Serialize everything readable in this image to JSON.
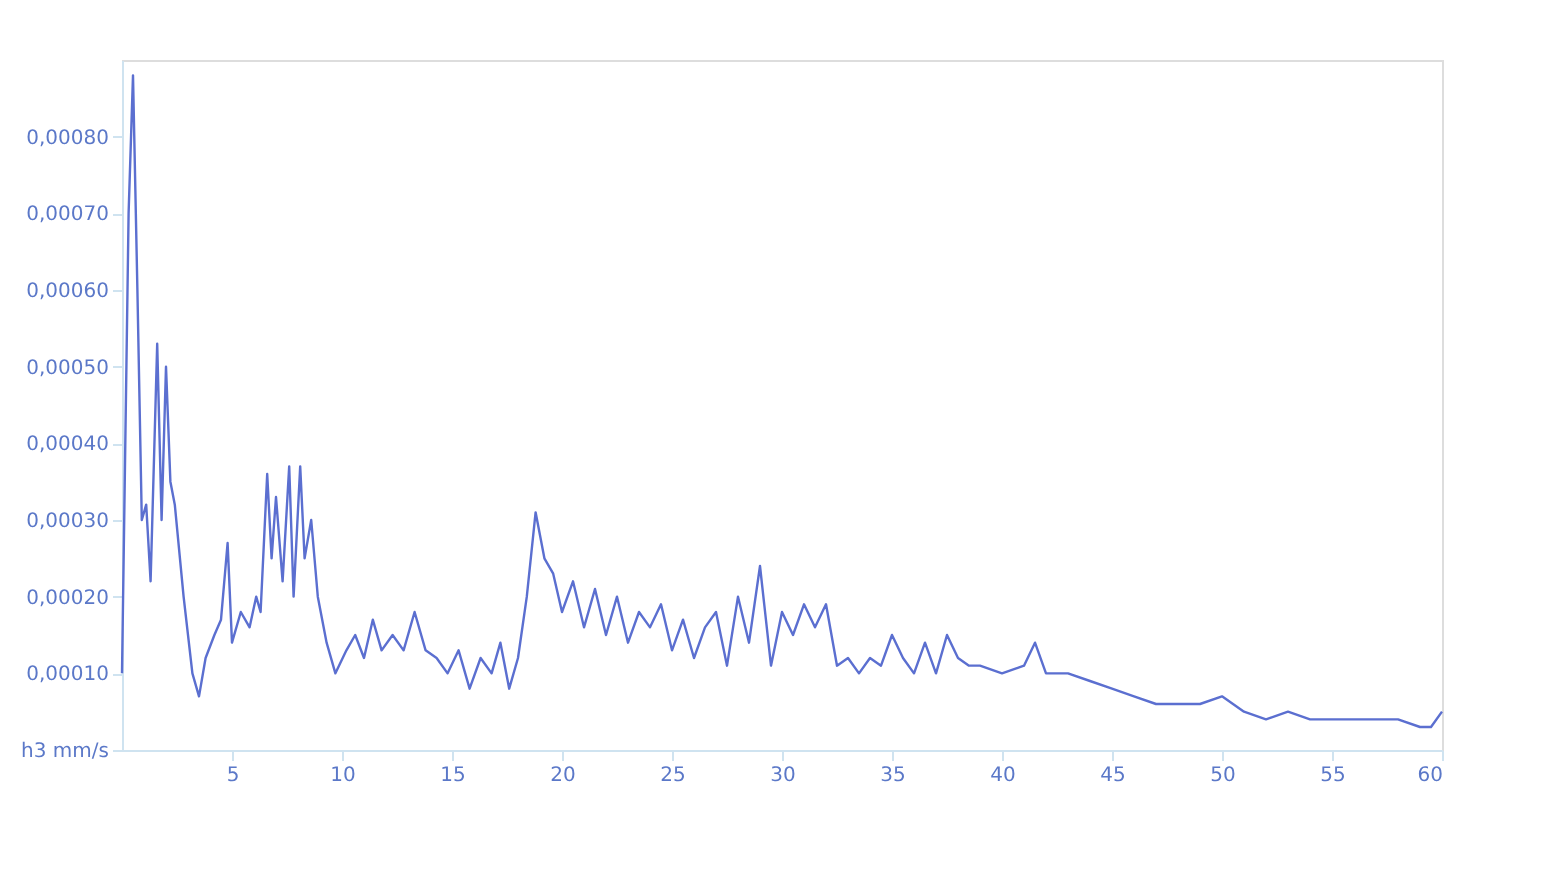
{
  "chart_data": {
    "type": "line",
    "grid": false,
    "marker": "none",
    "line_style": "solid",
    "x": [
      0,
      0.3,
      0.5,
      0.7,
      0.9,
      1.1,
      1.3,
      1.6,
      1.8,
      2.0,
      2.2,
      2.4,
      2.8,
      3.2,
      3.5,
      3.8,
      4.2,
      4.5,
      4.8,
      5.0,
      5.4,
      5.8,
      6.1,
      6.3,
      6.6,
      6.8,
      7.0,
      7.3,
      7.6,
      7.8,
      8.1,
      8.3,
      8.6,
      8.9,
      9.3,
      9.7,
      10.2,
      10.6,
      11.0,
      11.4,
      11.8,
      12.3,
      12.8,
      13.3,
      13.8,
      14.3,
      14.8,
      15.3,
      15.8,
      16.3,
      16.8,
      17.2,
      17.6,
      18.0,
      18.4,
      18.8,
      19.2,
      19.6,
      20.0,
      20.5,
      21.0,
      21.5,
      22.0,
      22.5,
      23.0,
      23.5,
      24.0,
      24.5,
      25.0,
      25.5,
      26.0,
      26.5,
      27.0,
      27.5,
      28.0,
      28.5,
      29.0,
      29.5,
      30.0,
      30.5,
      31.0,
      31.5,
      32.0,
      32.5,
      33.0,
      33.5,
      34.0,
      34.5,
      35.0,
      35.5,
      36.0,
      36.5,
      37.0,
      37.5,
      38.0,
      38.5,
      39.0,
      40.0,
      41.0,
      41.5,
      42.0,
      43.0,
      44.0,
      45.0,
      46.0,
      47.0,
      48.0,
      49.0,
      50.0,
      51.0,
      52.0,
      53.0,
      54.0,
      55.0,
      56.0,
      57.0,
      58.0,
      59.0,
      59.5,
      60.0
    ],
    "series": [
      {
        "color": "#5b6fd0",
        "values": [
          0.0001,
          0.0007,
          0.00088,
          0.0006,
          0.0003,
          0.00032,
          0.00022,
          0.00053,
          0.0003,
          0.0005,
          0.00035,
          0.00032,
          0.0002,
          0.0001,
          7e-05,
          0.00012,
          0.00015,
          0.00017,
          0.00027,
          0.00014,
          0.00018,
          0.00016,
          0.0002,
          0.00018,
          0.00036,
          0.00025,
          0.00033,
          0.00022,
          0.00037,
          0.0002,
          0.00037,
          0.00025,
          0.0003,
          0.0002,
          0.00014,
          0.0001,
          0.00013,
          0.00015,
          0.00012,
          0.00017,
          0.00013,
          0.00015,
          0.00013,
          0.00018,
          0.00013,
          0.00012,
          0.0001,
          0.00013,
          8e-05,
          0.00012,
          0.0001,
          0.00014,
          8e-05,
          0.00012,
          0.0002,
          0.00031,
          0.00025,
          0.00023,
          0.00018,
          0.00022,
          0.00016,
          0.00021,
          0.00015,
          0.0002,
          0.00014,
          0.00018,
          0.00016,
          0.00019,
          0.00013,
          0.00017,
          0.00012,
          0.00016,
          0.00018,
          0.00011,
          0.0002,
          0.00014,
          0.00024,
          0.00011,
          0.00018,
          0.00015,
          0.00019,
          0.00016,
          0.00019,
          0.00011,
          0.00012,
          0.0001,
          0.00012,
          0.00011,
          0.00015,
          0.00012,
          0.0001,
          0.00014,
          0.0001,
          0.00015,
          0.00012,
          0.00011,
          0.00011,
          0.0001,
          0.00011,
          0.00014,
          0.0001,
          0.0001,
          9e-05,
          8e-05,
          7e-05,
          6e-05,
          6e-05,
          6e-05,
          7e-05,
          5e-05,
          4e-05,
          5e-05,
          4e-05,
          4e-05,
          4e-05,
          4e-05,
          4e-05,
          3e-05,
          3e-05,
          5e-05
        ]
      }
    ],
    "xlim": [
      0,
      60
    ],
    "xticks": [
      5,
      10,
      15,
      20,
      25,
      30,
      35,
      40,
      45,
      50,
      55,
      60
    ],
    "ylim": [
      0,
      0.0009
    ],
    "yticks": [
      {
        "value": 0,
        "label": "h3 mm/s"
      },
      {
        "value": 0.0001,
        "label": "0,00010"
      },
      {
        "value": 0.0002,
        "label": "0,00020"
      },
      {
        "value": 0.0003,
        "label": "0,00030"
      },
      {
        "value": 0.0004,
        "label": "0,00040"
      },
      {
        "value": 0.0005,
        "label": "0,00050"
      },
      {
        "value": 0.0006,
        "label": "0,00060"
      },
      {
        "value": 0.0007,
        "label": "0,00070"
      },
      {
        "value": 0.0008,
        "label": "0,00080"
      }
    ]
  }
}
